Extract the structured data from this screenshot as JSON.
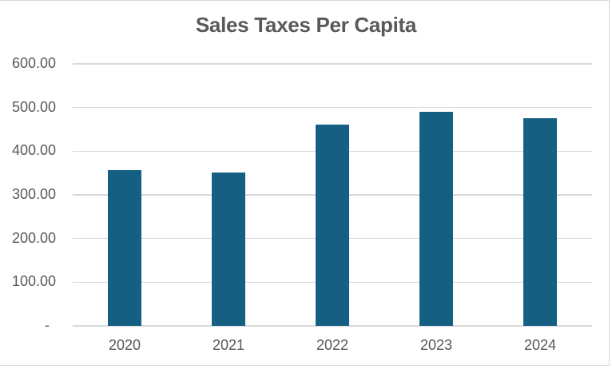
{
  "chart_data": {
    "type": "bar",
    "title": "Sales Taxes Per Capita",
    "categories": [
      "2020",
      "2021",
      "2022",
      "2023",
      "2024"
    ],
    "values": [
      357,
      351,
      461,
      490,
      475
    ],
    "series_name": "Sales Taxes Per Capita",
    "xlabel": "",
    "ylabel": "",
    "ylim": [
      0,
      600
    ],
    "ytick_step": 100,
    "ytick_labels": [
      "600.00",
      "500.00",
      "400.00",
      "300.00",
      "200.00",
      "100.00",
      "-"
    ],
    "grid": true,
    "legend": false
  },
  "colors": {
    "bar": "#156082",
    "gridline": "#D9D9D9",
    "axis_line": "#D9D9D9",
    "frame_border": "#D9D9D9",
    "title_text": "#595959",
    "tick_text": "#595959",
    "background": "#FFFFFF"
  }
}
